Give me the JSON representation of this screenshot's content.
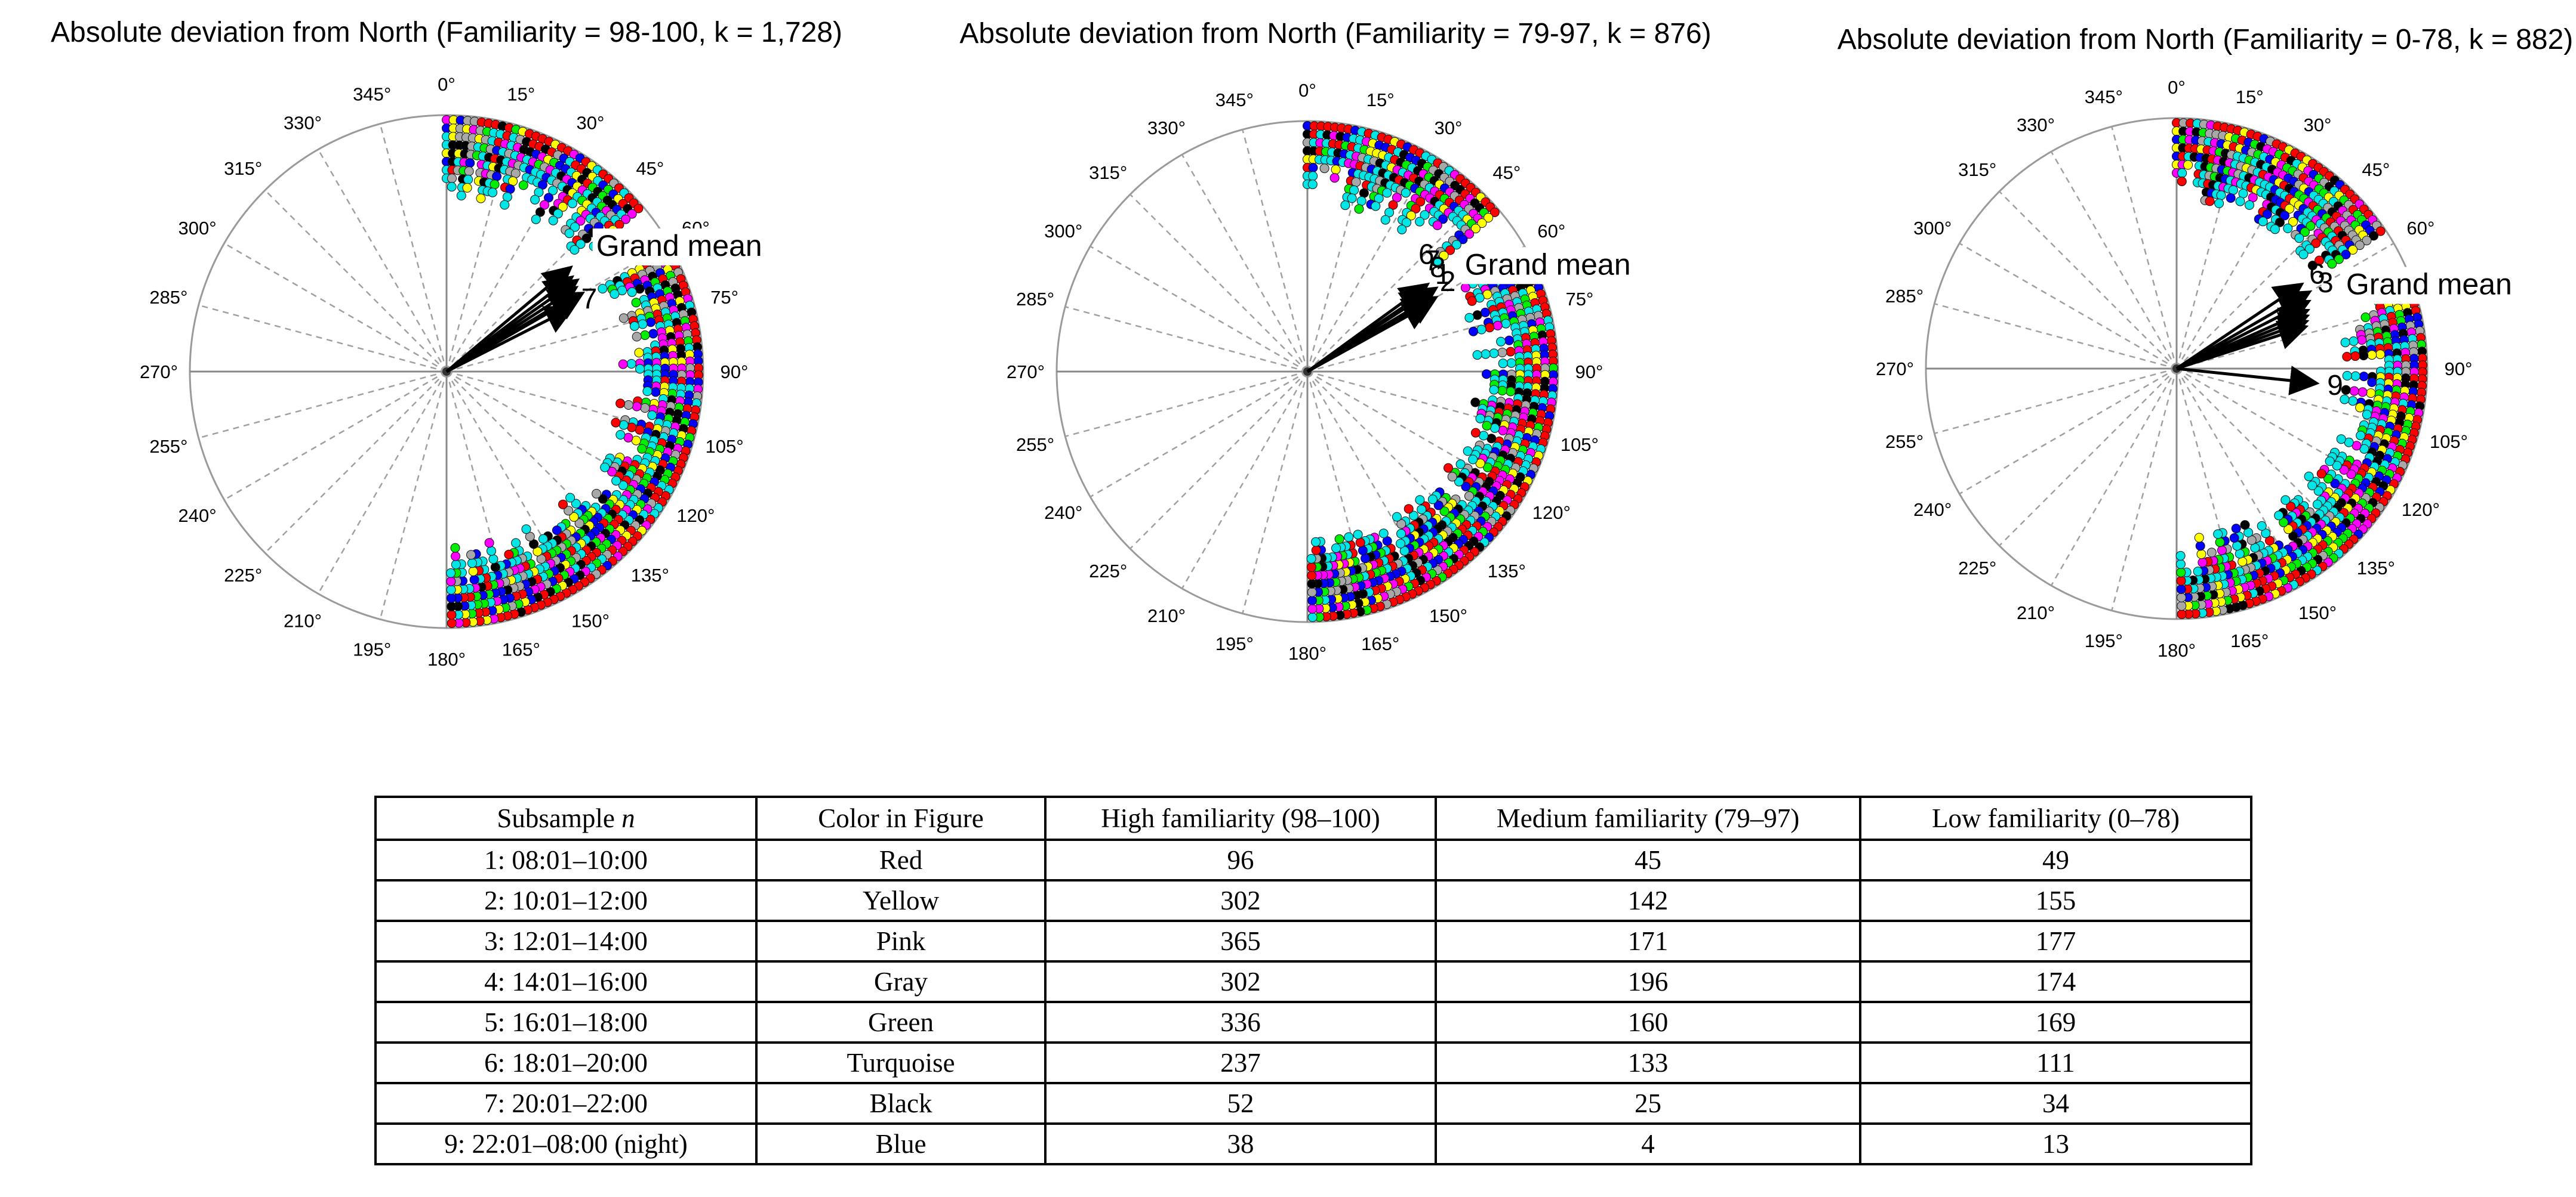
{
  "chart_data": [
    {
      "type": "scatter",
      "subtype": "polar",
      "title": "Absolute deviation from North (Familiarity = 98-100, k = 1,728)",
      "angular_ticks": [
        "0°",
        "15°",
        "30°",
        "45°",
        "60°",
        "75°",
        "90°",
        "105°",
        "120°",
        "135°",
        "150°",
        "165°",
        "180°",
        "195°",
        "210°",
        "225°",
        "240°",
        "255°",
        "270°",
        "285°",
        "300°",
        "315°",
        "330°",
        "345°"
      ],
      "points_arc_range_deg": [
        [
          0,
          50
        ],
        [
          62,
          180
        ]
      ],
      "mean_arrows": [
        {
          "label": "",
          "angle_deg": 50,
          "length": 0.62
        },
        {
          "label": "",
          "angle_deg": 53,
          "length": 0.6
        },
        {
          "label": "",
          "angle_deg": 55,
          "length": 0.61
        },
        {
          "label": "",
          "angle_deg": 57,
          "length": 0.59
        },
        {
          "label": "",
          "angle_deg": 59,
          "length": 0.58
        },
        {
          "label": "",
          "angle_deg": 60,
          "length": 0.6
        },
        {
          "label": "7",
          "angle_deg": 63,
          "length": 0.54
        }
      ],
      "grand_mean_label": "Grand mean",
      "grand_mean_label_angle_deg": 52
    },
    {
      "type": "scatter",
      "subtype": "polar",
      "title": "Absolute deviation from North (Familiarity = 79-97, k = 876)",
      "angular_ticks": [
        "0°",
        "15°",
        "30°",
        "45°",
        "60°",
        "75°",
        "90°",
        "105°",
        "120°",
        "135°",
        "150°",
        "165°",
        "180°",
        "195°",
        "210°",
        "225°",
        "240°",
        "255°",
        "270°",
        "285°",
        "300°",
        "315°",
        "330°",
        "345°"
      ],
      "points_arc_range_deg": [
        [
          0,
          50
        ],
        [
          62,
          180
        ]
      ],
      "mean_arrows": [
        {
          "label": "",
          "angle_deg": 54,
          "length": 0.58
        },
        {
          "label": "",
          "angle_deg": 56,
          "length": 0.57
        },
        {
          "label": "",
          "angle_deg": 57,
          "length": 0.6
        },
        {
          "label": "",
          "angle_deg": 59,
          "length": 0.56
        },
        {
          "label": "",
          "angle_deg": 60,
          "length": 0.58
        },
        {
          "label": "",
          "angle_deg": 61,
          "length": 0.55
        }
      ],
      "arrow_labels_visible": [
        "6",
        "7",
        "8",
        "1",
        "2"
      ],
      "grand_mean_label": "Grand mean",
      "grand_mean_label_angle_deg": 58
    },
    {
      "type": "scatter",
      "subtype": "polar",
      "title": "Absolute deviation from North (Familiarity = 0-78, k = 882)",
      "angular_ticks": [
        "0°",
        "15°",
        "30°",
        "45°",
        "60°",
        "75°",
        "90°",
        "105°",
        "120°",
        "135°",
        "150°",
        "165°",
        "180°",
        "195°",
        "210°",
        "225°",
        "240°",
        "255°",
        "270°",
        "285°",
        "300°",
        "315°",
        "330°",
        "345°"
      ],
      "points_arc_range_deg": [
        [
          0,
          57
        ],
        [
          70,
          180
        ]
      ],
      "mean_arrows": [
        {
          "label": "6",
          "angle_deg": 56,
          "length": 0.59
        },
        {
          "label": "3",
          "angle_deg": 60,
          "length": 0.6
        },
        {
          "label": "",
          "angle_deg": 63,
          "length": 0.58
        },
        {
          "label": "",
          "angle_deg": 66,
          "length": 0.56
        },
        {
          "label": "",
          "angle_deg": 68,
          "length": 0.55
        },
        {
          "label": "",
          "angle_deg": 70,
          "length": 0.54
        },
        {
          "label": "",
          "angle_deg": 72,
          "length": 0.53
        },
        {
          "label": "9",
          "angle_deg": 96,
          "length": 0.55
        }
      ],
      "grand_mean_label": "Grand mean",
      "grand_mean_label_angle_deg": 66
    }
  ],
  "colors": {
    "red": "#ff0000",
    "yellow": "#ffff00",
    "pink": "#ff00ff",
    "gray": "#a8a8a8",
    "green": "#00ee00",
    "turquoise": "#00e5e5",
    "black": "#000000",
    "blue": "#0000ff"
  },
  "table": {
    "headers": [
      "Subsample n",
      "Color in Figure",
      "High familiarity (98–100)",
      "Medium familiarity (79–97)",
      "Low familiarity (0–78)"
    ],
    "header_first_prefix": "Subsample ",
    "header_first_italic": "n",
    "rows": [
      [
        "1: 08:01–10:00",
        "Red",
        "96",
        "45",
        "49"
      ],
      [
        "2: 10:01–12:00",
        "Yellow",
        "302",
        "142",
        "155"
      ],
      [
        "3: 12:01–14:00",
        "Pink",
        "365",
        "171",
        "177"
      ],
      [
        "4: 14:01–16:00",
        "Gray",
        "302",
        "196",
        "174"
      ],
      [
        "5: 16:01–18:00",
        "Green",
        "336",
        "160",
        "169"
      ],
      [
        "6: 18:01–20:00",
        "Turquoise",
        "237",
        "133",
        "111"
      ],
      [
        "7: 20:01–22:00",
        "Black",
        "52",
        "25",
        "34"
      ],
      [
        "9: 22:01–08:00 (night)",
        "Blue",
        "38",
        "4",
        "13"
      ]
    ]
  }
}
